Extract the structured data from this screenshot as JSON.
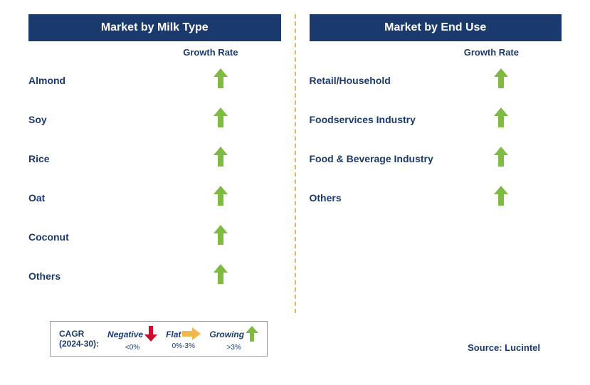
{
  "left_panel": {
    "title": "Market by Milk Type",
    "growth_header": "Growth Rate",
    "items": [
      {
        "label": "Almond",
        "growth": "growing"
      },
      {
        "label": "Soy",
        "growth": "growing"
      },
      {
        "label": "Rice",
        "growth": "growing"
      },
      {
        "label": "Oat",
        "growth": "growing"
      },
      {
        "label": "Coconut",
        "growth": "growing"
      },
      {
        "label": "Others",
        "growth": "growing"
      }
    ]
  },
  "right_panel": {
    "title": "Market by End Use",
    "growth_header": "Growth Rate",
    "items": [
      {
        "label": "Retail/Household",
        "growth": "growing"
      },
      {
        "label": "Foodservices Industry",
        "growth": "growing"
      },
      {
        "label": "Food & Beverage Industry",
        "growth": "growing"
      },
      {
        "label": "Others",
        "growth": "growing"
      }
    ]
  },
  "legend": {
    "cagr_line1": "CAGR",
    "cagr_line2": "(2024-30):",
    "negative_label": "Negative",
    "negative_sub": "<0%",
    "flat_label": "Flat",
    "flat_sub": "0%-3%",
    "growing_label": "Growing",
    "growing_sub": ">3%"
  },
  "source": "Source: Lucintel",
  "colors": {
    "header_bg": "#1a3a6e",
    "text": "#1a3a6e",
    "divider": "#f0b84a",
    "arrow_green": "#7fba42",
    "arrow_red": "#c8102e",
    "arrow_yellow": "#f0b84a"
  }
}
